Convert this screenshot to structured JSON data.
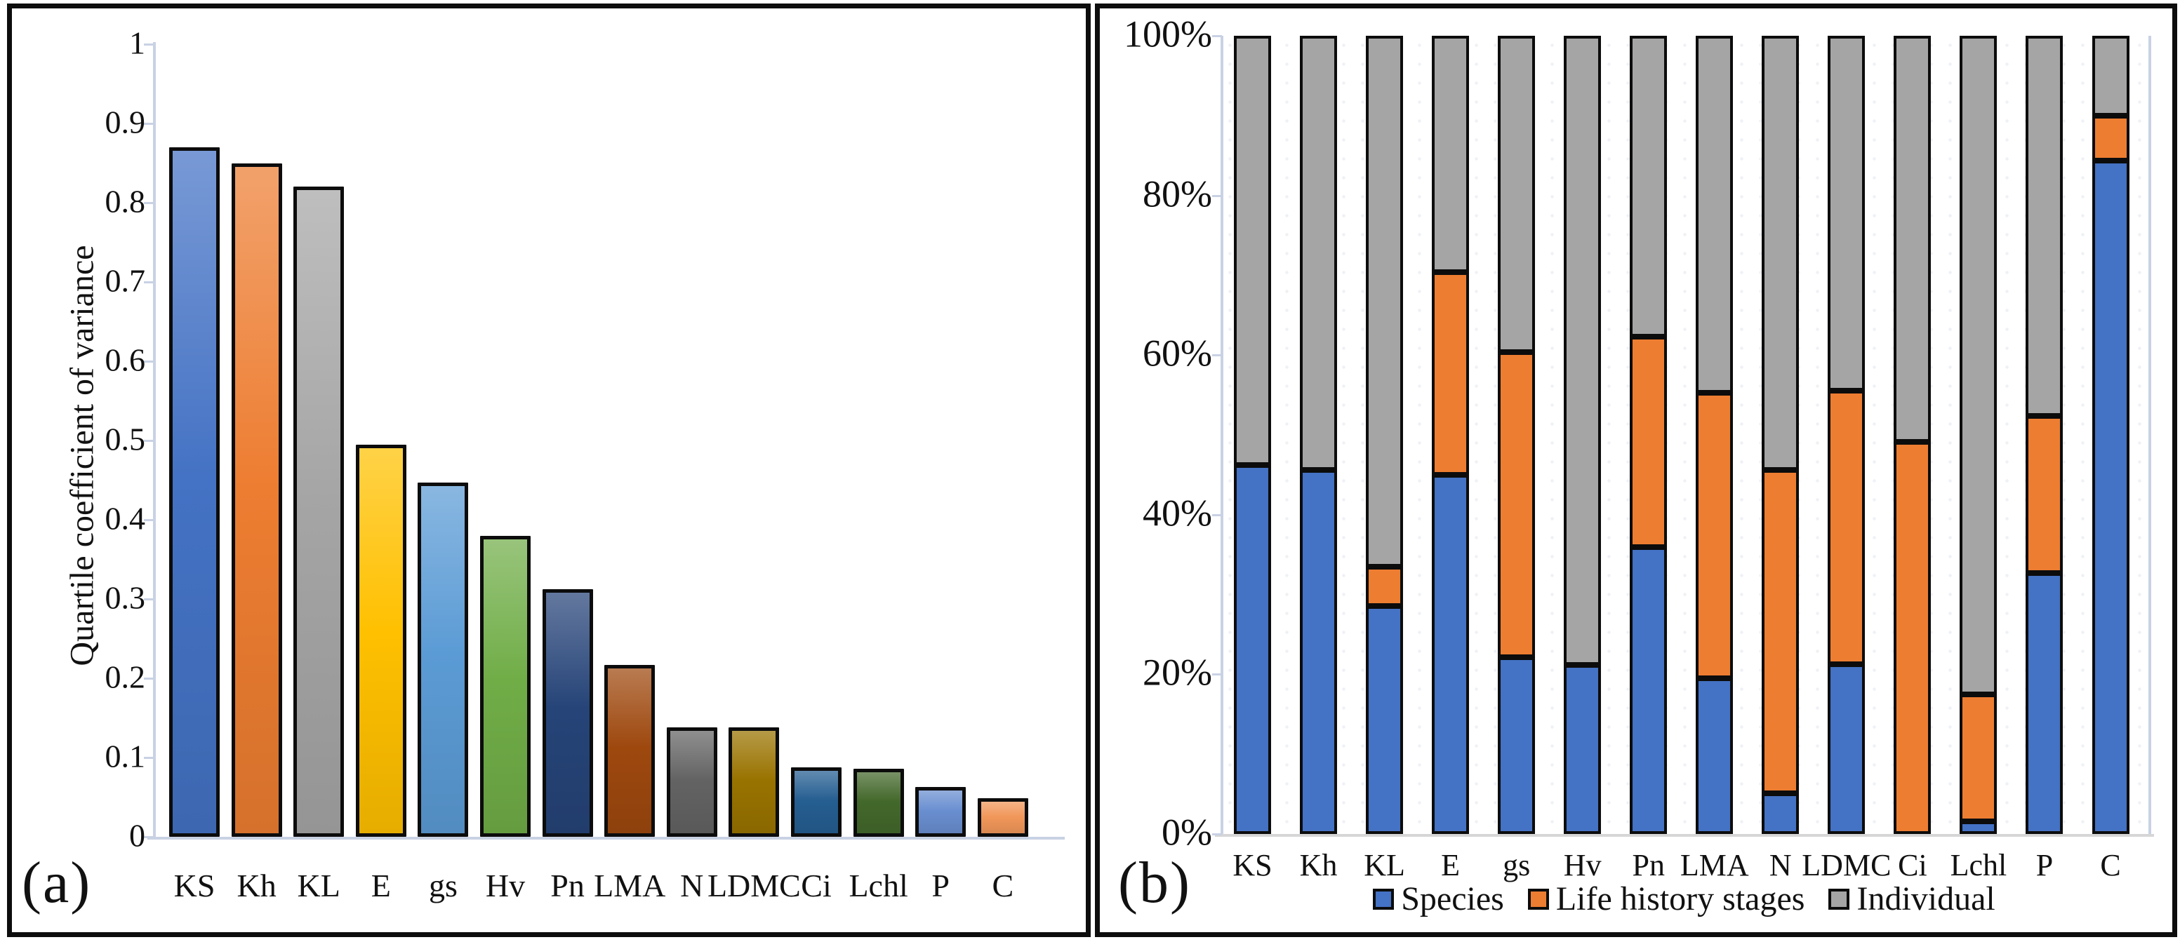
{
  "chart_data": [
    {
      "panel": "a",
      "type": "bar",
      "panel_label": "(a)",
      "title": "",
      "xlabel": "",
      "ylabel": "Quartile coefficient of variance",
      "ylim": [
        0,
        1
      ],
      "grid": false,
      "categories": [
        "KS",
        "Kh",
        "KL",
        "E",
        "gs",
        "Hv",
        "Pn",
        "LMA",
        "N",
        "LDMC",
        "Ci",
        "Lchl",
        "P",
        "C"
      ],
      "values": [
        0.87,
        0.85,
        0.82,
        0.495,
        0.447,
        0.38,
        0.312,
        0.217,
        0.138,
        0.138,
        0.088,
        0.086,
        0.063,
        0.049
      ],
      "bar_colors": [
        "#4472C4",
        "#ED7D31",
        "#A5A5A5",
        "#FFC000",
        "#5B9BD5",
        "#70AD47",
        "#264478",
        "#9E480E",
        "#636363",
        "#997300",
        "#255E91",
        "#43682B",
        "#698ED0",
        "#F1975A"
      ],
      "ytick_labels": [
        "1",
        "0.9",
        "0.8",
        "0.7",
        "0.6",
        "0.5",
        "0.4",
        "0.3",
        "0.2",
        "0.1",
        "0"
      ],
      "ytick_values": [
        1,
        0.9,
        0.8,
        0.7,
        0.6,
        0.5,
        0.4,
        0.3,
        0.2,
        0.1,
        0
      ]
    },
    {
      "panel": "b",
      "type": "stacked-bar-100",
      "panel_label": "(b)",
      "title": "",
      "xlabel": "",
      "ylabel": "",
      "ylim": [
        0,
        100
      ],
      "grid": false,
      "legend_position": "bottom",
      "categories": [
        "KS",
        "Kh",
        "KL",
        "E",
        "gs",
        "Hv",
        "Pn",
        "LMA",
        "N",
        "LDMC",
        "Ci",
        "Lchl",
        "P",
        "C"
      ],
      "series": [
        {
          "name": "Species",
          "color": "#4472C4",
          "values": [
            46.2,
            45.6,
            28.6,
            45.0,
            22.1,
            21.2,
            35.9,
            19.5,
            5.1,
            21.3,
            0.0,
            1.6,
            32.7,
            84.4
          ]
        },
        {
          "name": "Life history stages",
          "color": "#ED7D31",
          "values": [
            0.0,
            0.0,
            4.9,
            25.4,
            38.3,
            0.0,
            26.4,
            35.8,
            40.5,
            34.2,
            49.1,
            15.9,
            19.7,
            5.6
          ]
        },
        {
          "name": "Individual",
          "color": "#A5A5A5",
          "values": [
            53.8,
            54.4,
            66.5,
            29.6,
            39.6,
            78.8,
            37.7,
            44.7,
            54.4,
            44.5,
            50.9,
            82.5,
            47.6,
            10.0
          ]
        }
      ],
      "ytick_labels": [
        "100%",
        "80%",
        "60%",
        "40%",
        "20%",
        "0%"
      ],
      "ytick_values": [
        100,
        80,
        60,
        40,
        20,
        0
      ]
    }
  ]
}
